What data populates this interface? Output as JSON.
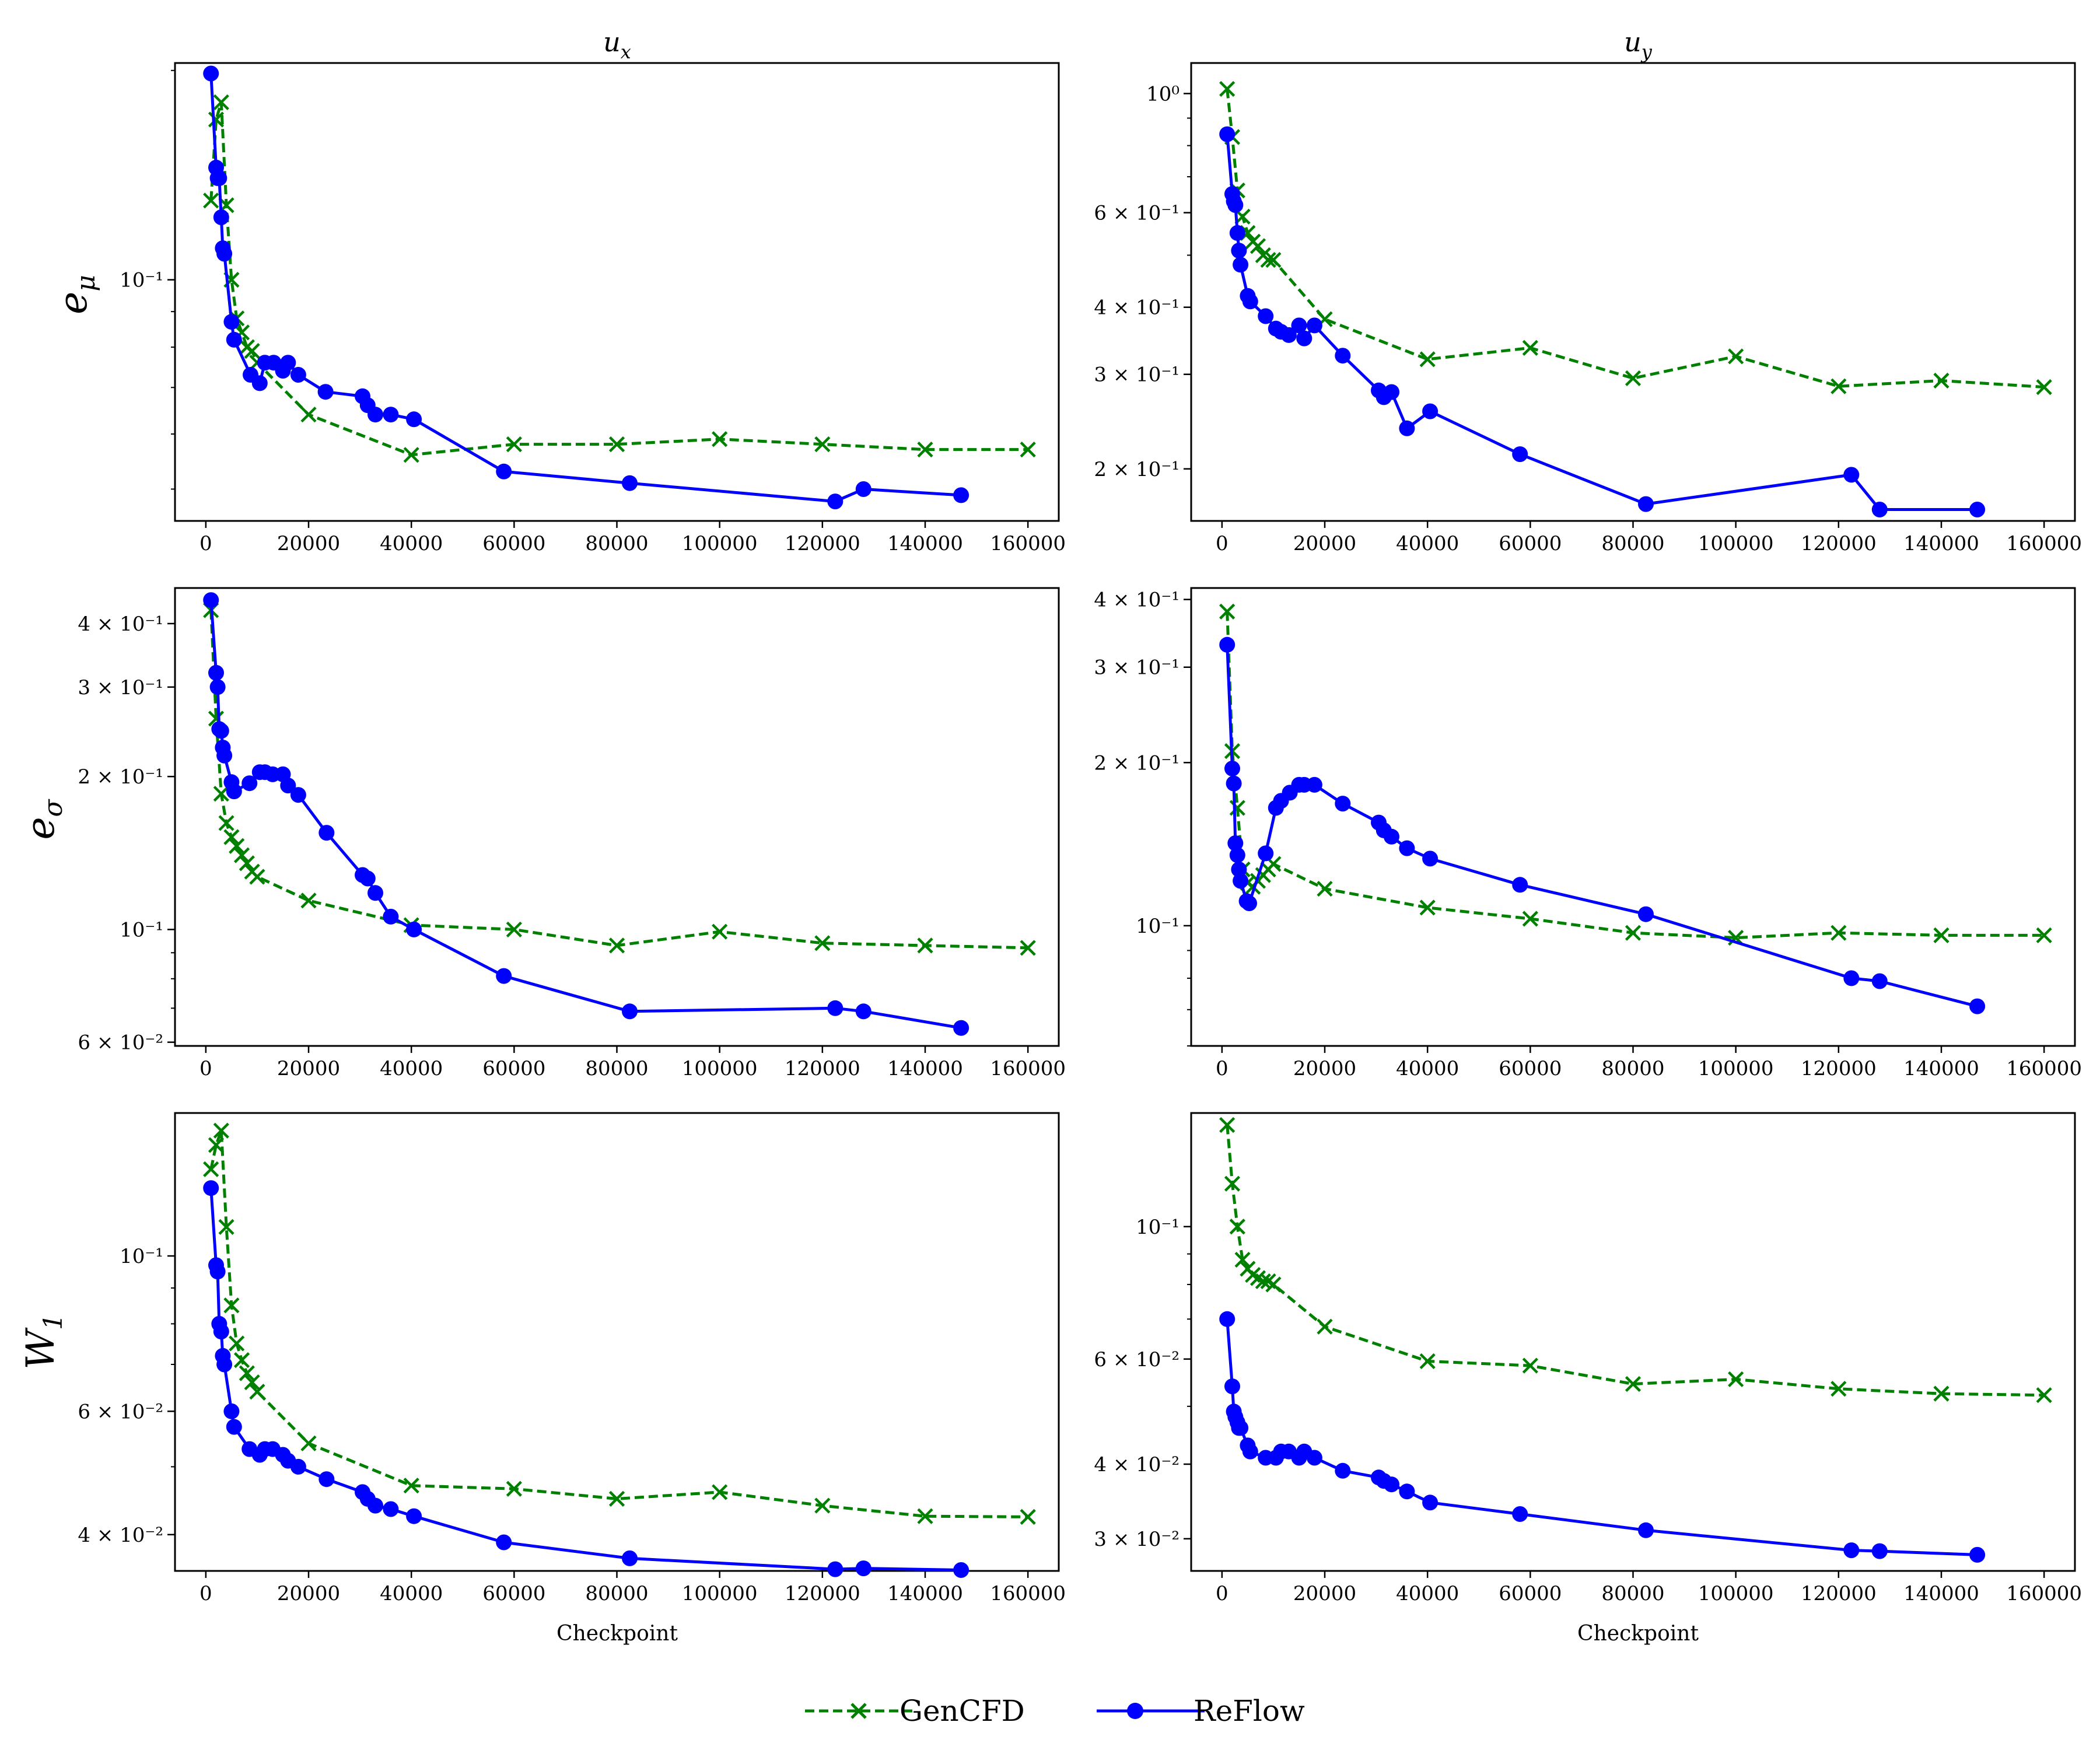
{
  "chart_data": {
    "type": "line",
    "x_tick_labels": [
      "0",
      "20000",
      "40000",
      "60000",
      "80000",
      "100000",
      "120000",
      "140000",
      "160000"
    ],
    "xlim": [
      -6000,
      166000
    ],
    "xlabel": "Checkpoint",
    "column_titles": [
      {
        "base": "u",
        "sub": "x"
      },
      {
        "base": "u",
        "sub": "y"
      }
    ],
    "row_labels": [
      {
        "base": "e",
        "sub": "μ"
      },
      {
        "base": "e",
        "sub": "σ"
      },
      {
        "base": "W",
        "sub": "1"
      }
    ],
    "legend": [
      {
        "name": "GenCFD",
        "color": "#008000",
        "marker": "x",
        "dash": true
      },
      {
        "name": "ReFlow",
        "color": "#0000ff",
        "marker": "o",
        "dash": false
      }
    ],
    "panels": [
      {
        "row": 0,
        "col": 0,
        "ylim": [
          0.045,
          0.205
        ],
        "y_ticks": [
          {
            "v": 0.1,
            "m": "10",
            "e": "−1"
          }
        ],
        "series": [
          {
            "name": "GenCFD",
            "x": [
              1000,
              2000,
              3000,
              4000,
              5000,
              6000,
              7000,
              8000,
              9000,
              10000,
              20000,
              40000,
              60000,
              80000,
              100000,
              120000,
              140000,
              160000
            ],
            "y": [
              0.13,
              0.17,
              0.18,
              0.128,
              0.1,
              0.088,
              0.084,
              0.08,
              0.079,
              0.076,
              0.064,
              0.056,
              0.058,
              0.058,
              0.059,
              0.058,
              0.057,
              0.057
            ]
          },
          {
            "name": "ReFlow",
            "x": [
              1000,
              2000,
              2300,
              2600,
              3000,
              3300,
              3600,
              5000,
              5500,
              8700,
              10500,
              11500,
              13200,
              15000,
              16000,
              18000,
              23300,
              30500,
              31500,
              33000,
              36000,
              40500,
              58000,
              82500,
              122500,
              128000,
              147000
            ],
            "y": [
              0.198,
              0.145,
              0.14,
              0.14,
              0.123,
              0.111,
              0.109,
              0.087,
              0.082,
              0.073,
              0.071,
              0.076,
              0.076,
              0.074,
              0.076,
              0.073,
              0.069,
              0.068,
              0.066,
              0.064,
              0.064,
              0.063,
              0.053,
              0.051,
              0.048,
              0.05,
              0.049
            ]
          }
        ]
      },
      {
        "row": 0,
        "col": 1,
        "ylim": [
          0.16,
          1.14
        ],
        "y_ticks": [
          {
            "v": 1.0,
            "m": "10",
            "e": "0"
          },
          {
            "v": 0.6,
            "m": "6 × 10",
            "e": "−1"
          },
          {
            "v": 0.4,
            "m": "4 × 10",
            "e": "−1"
          },
          {
            "v": 0.3,
            "m": "3 × 10",
            "e": "−1"
          },
          {
            "v": 0.2,
            "m": "2 × 10",
            "e": "−1"
          }
        ],
        "series": [
          {
            "name": "GenCFD",
            "x": [
              1000,
              2000,
              3000,
              4000,
              5000,
              6000,
              7000,
              8000,
              9000,
              10000,
              20000,
              40000,
              60000,
              80000,
              100000,
              120000,
              140000,
              160000
            ],
            "y": [
              1.02,
              0.83,
              0.66,
              0.59,
              0.55,
              0.53,
              0.52,
              0.5,
              0.49,
              0.49,
              0.38,
              0.32,
              0.336,
              0.295,
              0.324,
              0.285,
              0.292,
              0.284
            ]
          },
          {
            "name": "ReFlow",
            "x": [
              1000,
              2000,
              2300,
              2600,
              3000,
              3300,
              3600,
              5000,
              5500,
              8500,
              10500,
              11500,
              13000,
              15000,
              16000,
              18000,
              23500,
              30500,
              31500,
              33000,
              36000,
              40500,
              58000,
              82500,
              122500,
              128000,
              147000
            ],
            "y": [
              0.84,
              0.65,
              0.63,
              0.62,
              0.55,
              0.51,
              0.48,
              0.42,
              0.41,
              0.385,
              0.365,
              0.36,
              0.355,
              0.37,
              0.35,
              0.37,
              0.325,
              0.28,
              0.272,
              0.278,
              0.238,
              0.256,
              0.213,
              0.172,
              0.195,
              0.168,
              0.168
            ]
          }
        ]
      },
      {
        "row": 1,
        "col": 0,
        "ylim": [
          0.059,
          0.47
        ],
        "y_ticks": [
          {
            "v": 0.4,
            "m": "4 × 10",
            "e": "−1"
          },
          {
            "v": 0.3,
            "m": "3 × 10",
            "e": "−1"
          },
          {
            "v": 0.2,
            "m": "2 × 10",
            "e": "−1"
          },
          {
            "v": 0.1,
            "m": "10",
            "e": "−1"
          },
          {
            "v": 0.06,
            "m": "6 × 10",
            "e": "−2"
          }
        ],
        "series": [
          {
            "name": "GenCFD",
            "x": [
              1000,
              2000,
              3000,
              4000,
              5000,
              6000,
              7000,
              8000,
              9000,
              10000,
              20000,
              40000,
              60000,
              80000,
              100000,
              120000,
              140000,
              160000
            ],
            "y": [
              0.425,
              0.26,
              0.185,
              0.162,
              0.152,
              0.146,
              0.14,
              0.135,
              0.13,
              0.127,
              0.114,
              0.102,
              0.1,
              0.093,
              0.099,
              0.094,
              0.093,
              0.092
            ]
          },
          {
            "name": "ReFlow",
            "x": [
              1000,
              2000,
              2300,
              2600,
              3000,
              3300,
              3600,
              5000,
              5500,
              8500,
              10500,
              11500,
              13000,
              15000,
              16000,
              18000,
              23500,
              30500,
              31500,
              33000,
              36000,
              40500,
              58000,
              82500,
              122500,
              128000,
              147000
            ],
            "y": [
              0.445,
              0.32,
              0.3,
              0.248,
              0.246,
              0.228,
              0.22,
              0.195,
              0.187,
              0.194,
              0.204,
              0.204,
              0.202,
              0.202,
              0.192,
              0.184,
              0.155,
              0.128,
              0.126,
              0.118,
              0.106,
              0.1,
              0.081,
              0.069,
              0.07,
              0.069,
              0.064
            ]
          }
        ]
      },
      {
        "row": 1,
        "col": 1,
        "ylim": [
          0.06,
          0.42
        ],
        "y_ticks": [
          {
            "v": 0.4,
            "m": "4 × 10",
            "e": "−1"
          },
          {
            "v": 0.3,
            "m": "3 × 10",
            "e": "−1"
          },
          {
            "v": 0.2,
            "m": "2 × 10",
            "e": "−1"
          },
          {
            "v": 0.1,
            "m": "10",
            "e": "−1"
          }
        ],
        "series": [
          {
            "name": "GenCFD",
            "x": [
              1000,
              2000,
              3000,
              4000,
              5000,
              6000,
              7000,
              8000,
              9000,
              10000,
              20000,
              40000,
              60000,
              80000,
              100000,
              120000,
              140000,
              160000
            ],
            "y": [
              0.38,
              0.21,
              0.165,
              0.127,
              0.12,
              0.118,
              0.121,
              0.124,
              0.127,
              0.13,
              0.117,
              0.108,
              0.103,
              0.097,
              0.095,
              0.097,
              0.096,
              0.096
            ]
          },
          {
            "name": "ReFlow",
            "x": [
              1000,
              2000,
              2300,
              2600,
              3000,
              3300,
              3600,
              4800,
              5300,
              8500,
              10500,
              11500,
              13200,
              15000,
              16000,
              18000,
              23500,
              30500,
              31500,
              33000,
              36000,
              40500,
              58000,
              82500,
              122500,
              128000,
              147000
            ],
            "y": [
              0.33,
              0.195,
              0.183,
              0.142,
              0.135,
              0.127,
              0.121,
              0.111,
              0.11,
              0.136,
              0.165,
              0.17,
              0.176,
              0.182,
              0.182,
              0.182,
              0.168,
              0.155,
              0.15,
              0.146,
              0.139,
              0.133,
              0.119,
              0.105,
              0.08,
              0.079,
              0.071
            ]
          }
        ]
      },
      {
        "row": 2,
        "col": 0,
        "ylim": [
          0.0355,
          0.16
        ],
        "y_ticks": [
          {
            "v": 0.1,
            "m": "10",
            "e": "−1"
          },
          {
            "v": 0.06,
            "m": "6 × 10",
            "e": "−2"
          },
          {
            "v": 0.04,
            "m": "4 × 10",
            "e": "−2"
          }
        ],
        "series": [
          {
            "name": "GenCFD",
            "x": [
              1000,
              2000,
              3000,
              4000,
              5000,
              6000,
              7000,
              8000,
              9000,
              10000,
              20000,
              40000,
              60000,
              80000,
              100000,
              120000,
              140000,
              160000
            ],
            "y": [
              0.133,
              0.144,
              0.151,
              0.11,
              0.085,
              0.075,
              0.071,
              0.068,
              0.066,
              0.064,
              0.054,
              0.047,
              0.0465,
              0.045,
              0.046,
              0.044,
              0.0425,
              0.0424
            ]
          },
          {
            "name": "ReFlow",
            "x": [
              1000,
              2000,
              2300,
              2600,
              3000,
              3300,
              3600,
              5000,
              5500,
              8500,
              10500,
              11500,
              13000,
              15000,
              16000,
              18000,
              23500,
              30500,
              31500,
              33000,
              36000,
              40500,
              58000,
              82500,
              122500,
              128000,
              147000
            ],
            "y": [
              0.125,
              0.097,
              0.095,
              0.08,
              0.078,
              0.072,
              0.07,
              0.06,
              0.057,
              0.053,
              0.052,
              0.053,
              0.053,
              0.052,
              0.051,
              0.05,
              0.048,
              0.046,
              0.045,
              0.044,
              0.0435,
              0.0425,
              0.039,
              0.037,
              0.0357,
              0.0358,
              0.0356
            ]
          }
        ]
      },
      {
        "row": 2,
        "col": 1,
        "ylim": [
          0.0265,
          0.155
        ],
        "y_ticks": [
          {
            "v": 0.1,
            "m": "10",
            "e": "−1"
          },
          {
            "v": 0.06,
            "m": "6 × 10",
            "e": "−2"
          },
          {
            "v": 0.04,
            "m": "4 × 10",
            "e": "−2"
          },
          {
            "v": 0.03,
            "m": "3 × 10",
            "e": "−2"
          }
        ],
        "series": [
          {
            "name": "GenCFD",
            "x": [
              1000,
              2000,
              3000,
              4000,
              5000,
              6000,
              7000,
              8000,
              9000,
              10000,
              20000,
              40000,
              60000,
              80000,
              100000,
              120000,
              140000,
              160000
            ],
            "y": [
              0.148,
              0.118,
              0.1,
              0.088,
              0.085,
              0.083,
              0.082,
              0.081,
              0.081,
              0.08,
              0.068,
              0.0595,
              0.0585,
              0.0545,
              0.0555,
              0.0535,
              0.0525,
              0.0522
            ]
          },
          {
            "name": "ReFlow",
            "x": [
              1000,
              2000,
              2300,
              2600,
              3000,
              3300,
              3600,
              5000,
              5500,
              8500,
              10500,
              11500,
              13000,
              15000,
              16000,
              18000,
              23500,
              30500,
              31500,
              33000,
              36000,
              40500,
              58000,
              82500,
              122500,
              128000,
              147000
            ],
            "y": [
              0.07,
              0.054,
              0.049,
              0.048,
              0.047,
              0.046,
              0.046,
              0.043,
              0.042,
              0.041,
              0.041,
              0.042,
              0.042,
              0.041,
              0.042,
              0.041,
              0.039,
              0.038,
              0.0375,
              0.037,
              0.036,
              0.0345,
              0.033,
              0.031,
              0.0287,
              0.0286,
              0.0282
            ]
          }
        ]
      }
    ]
  }
}
